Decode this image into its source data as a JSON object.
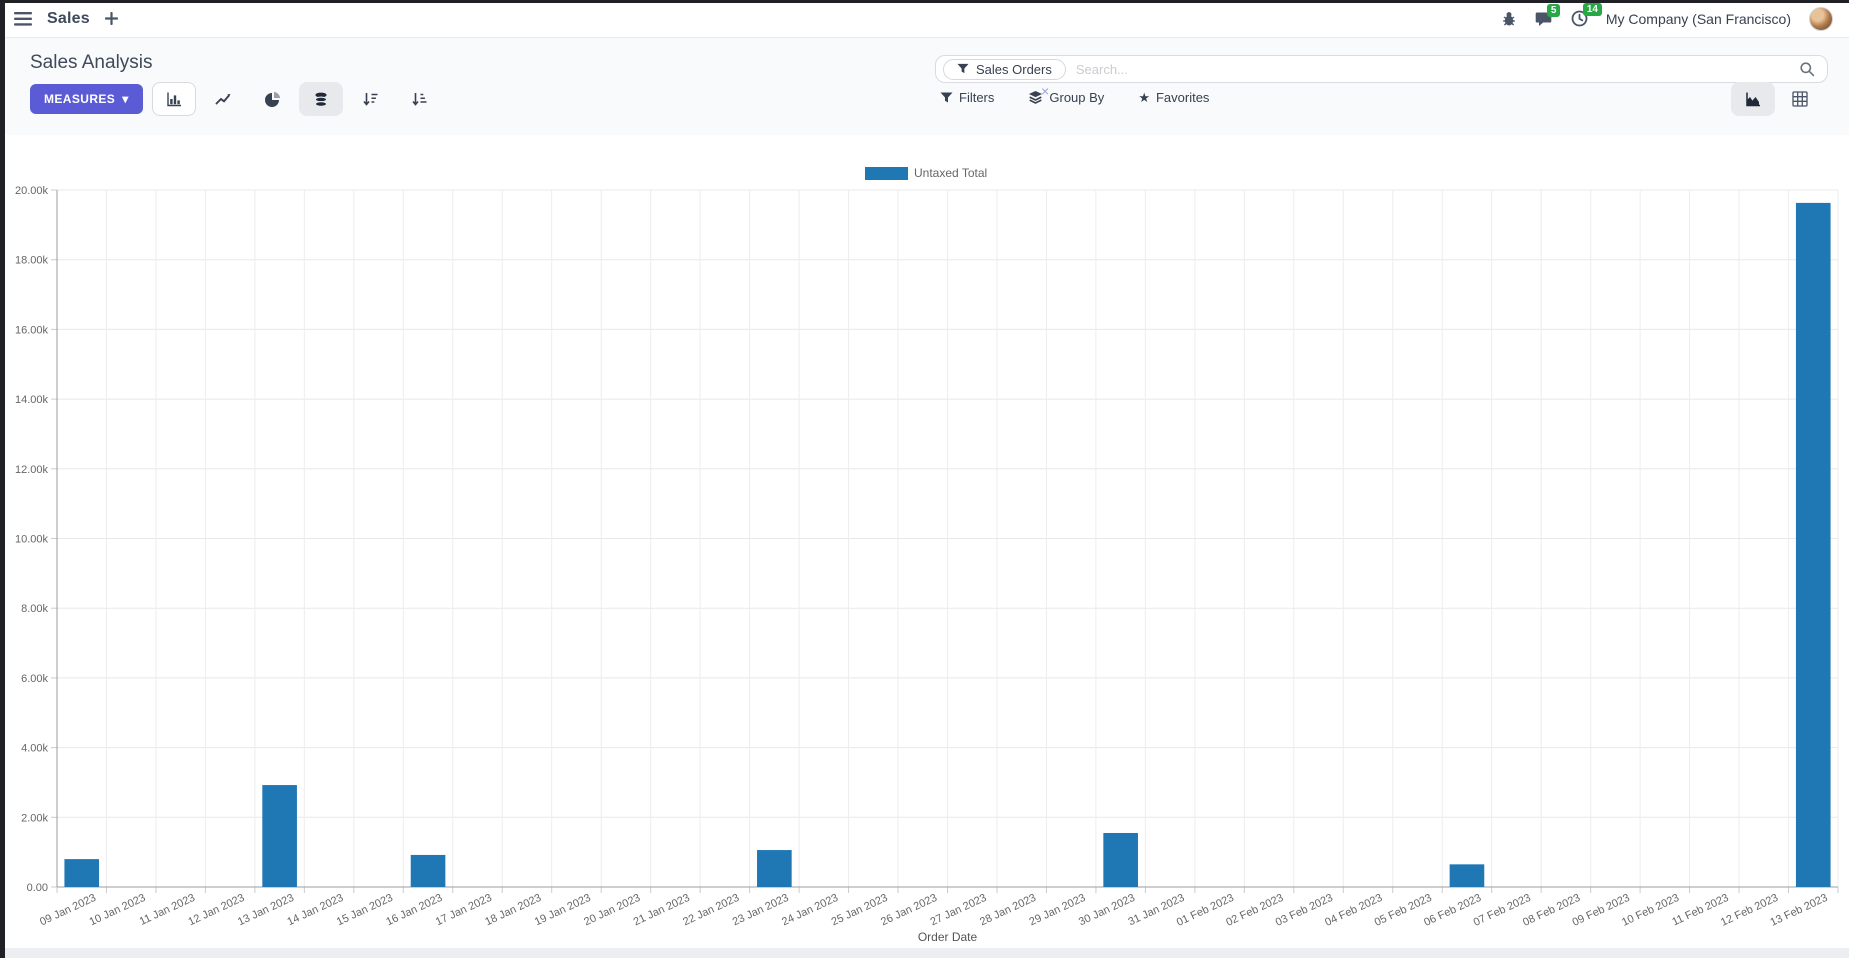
{
  "navbar": {
    "app_name": "Sales",
    "message_count": "5",
    "activity_count": "14",
    "company_name": "My Company (San Francisco)"
  },
  "control_panel": {
    "title": "Sales Analysis",
    "measures_button": "MEASURES",
    "search_facet": "Sales Orders",
    "facet_remove": "×",
    "search_placeholder": "Search...",
    "filters_label": "Filters",
    "group_by_label": "Group By",
    "favorites_label": "Favorites"
  },
  "icons": {
    "star": "★",
    "caret_down": "▾"
  },
  "chart_data": {
    "type": "bar",
    "legend_position": "top-center",
    "xlabel": "Order Date",
    "ylim": [
      0,
      20000
    ],
    "ytick_step": 2000,
    "ytick_labels": [
      "0.00",
      "2.00k",
      "4.00k",
      "6.00k",
      "8.00k",
      "10.00k",
      "12.00k",
      "14.00k",
      "16.00k",
      "18.00k",
      "20.00k"
    ],
    "grid": true,
    "categories": [
      "09 Jan 2023",
      "10 Jan 2023",
      "11 Jan 2023",
      "12 Jan 2023",
      "13 Jan 2023",
      "14 Jan 2023",
      "15 Jan 2023",
      "16 Jan 2023",
      "17 Jan 2023",
      "18 Jan 2023",
      "19 Jan 2023",
      "20 Jan 2023",
      "21 Jan 2023",
      "22 Jan 2023",
      "23 Jan 2023",
      "24 Jan 2023",
      "25 Jan 2023",
      "26 Jan 2023",
      "27 Jan 2023",
      "28 Jan 2023",
      "29 Jan 2023",
      "30 Jan 2023",
      "31 Jan 2023",
      "01 Feb 2023",
      "02 Feb 2023",
      "03 Feb 2023",
      "04 Feb 2023",
      "05 Feb 2023",
      "06 Feb 2023",
      "07 Feb 2023",
      "08 Feb 2023",
      "09 Feb 2023",
      "10 Feb 2023",
      "11 Feb 2023",
      "12 Feb 2023",
      "13 Feb 2023"
    ],
    "series": [
      {
        "name": "Untaxed Total",
        "color": "#1f77b4",
        "values": [
          800,
          0,
          0,
          0,
          2925,
          0,
          0,
          920,
          0,
          0,
          0,
          0,
          0,
          0,
          1060,
          0,
          0,
          0,
          0,
          0,
          0,
          1550,
          0,
          0,
          0,
          0,
          0,
          0,
          650,
          0,
          0,
          0,
          0,
          0,
          0,
          19630
        ]
      }
    ]
  }
}
